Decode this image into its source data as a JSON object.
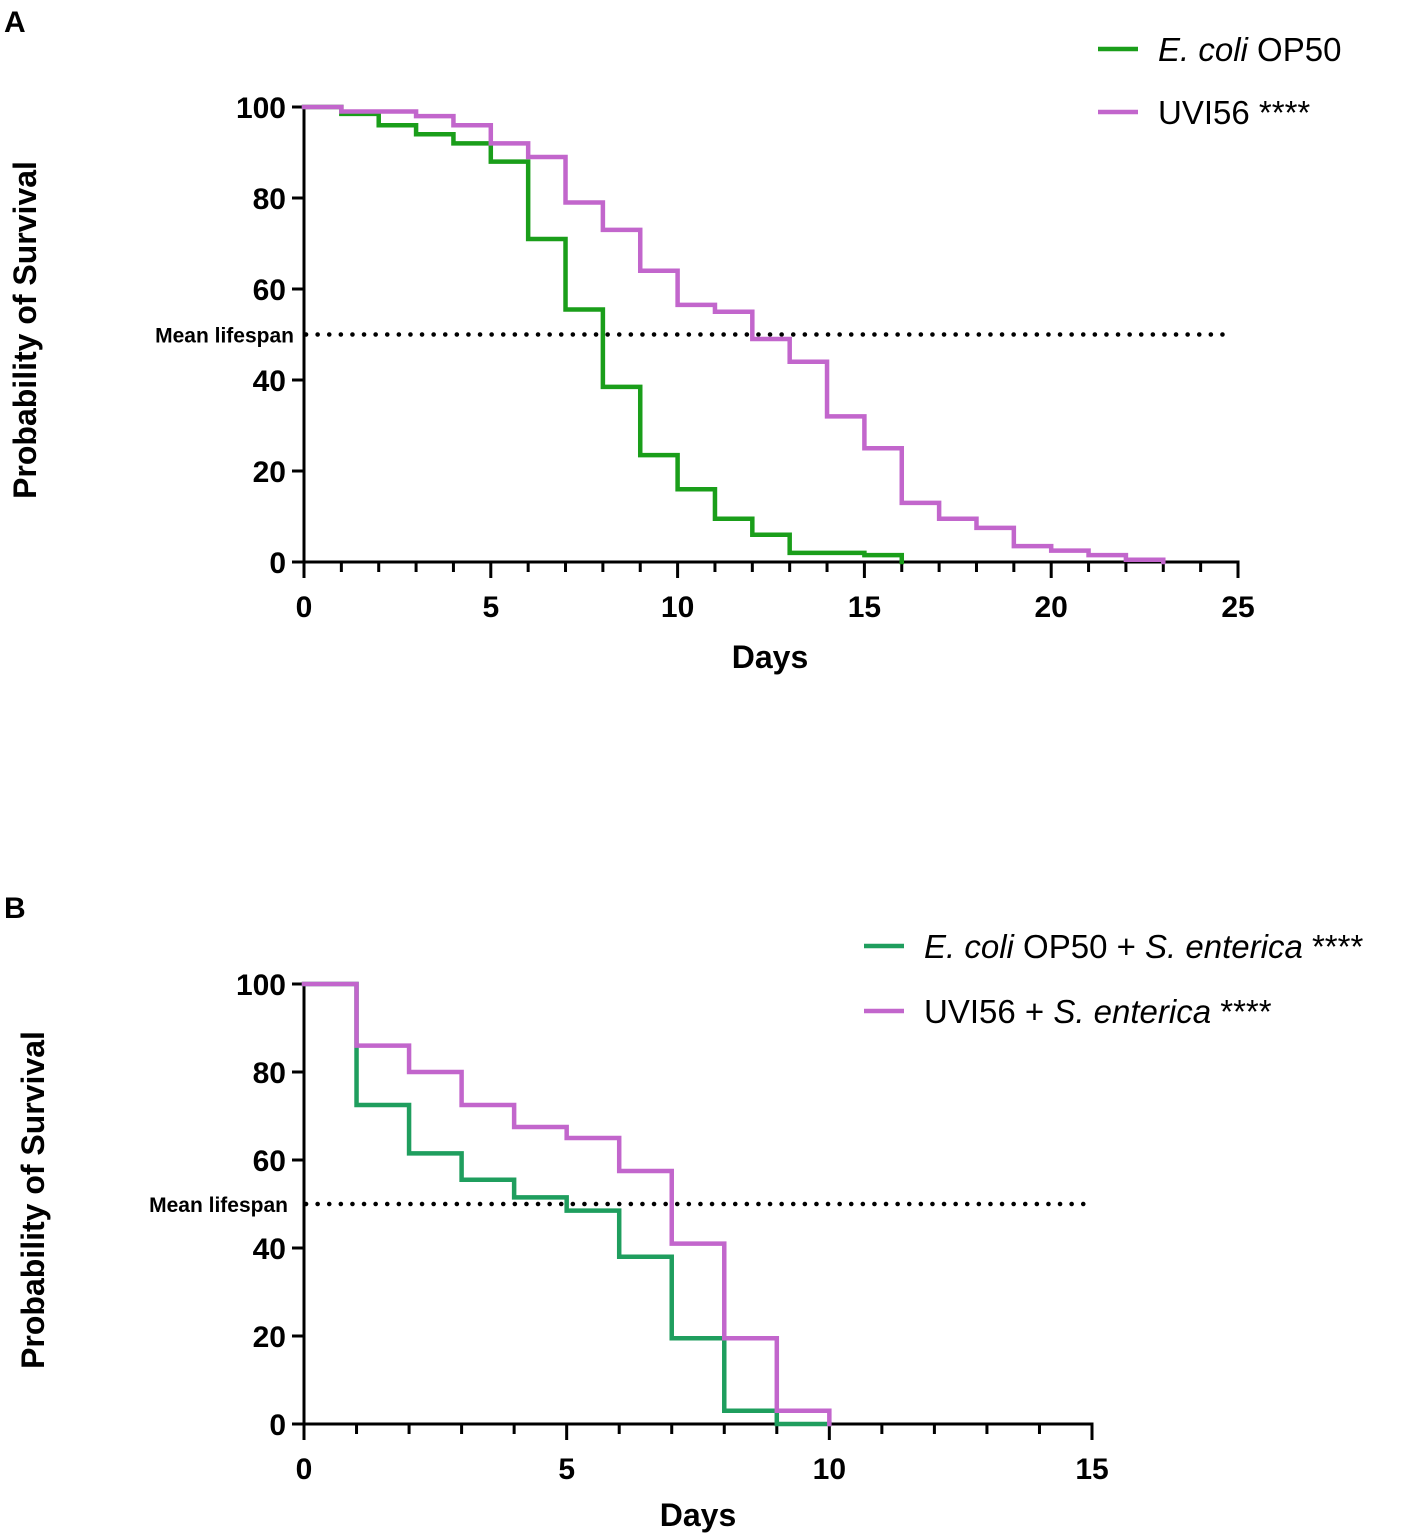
{
  "chart_data": [
    {
      "type": "line",
      "subtype": "kaplan-meier-step",
      "panel": "A",
      "xlabel": "Days",
      "ylabel": "Probability of Survival",
      "xlim": [
        0,
        25
      ],
      "ylim": [
        0,
        100
      ],
      "xticks": [
        0,
        5,
        10,
        15,
        20,
        25
      ],
      "yticks": [
        0,
        20,
        40,
        60,
        80,
        100
      ],
      "x_minor_step": 1,
      "reference_line": {
        "label": "Mean lifespan",
        "y": 50,
        "style": "dotted"
      },
      "legend_position": "top-right",
      "series": [
        {
          "name": "E. coli OP50",
          "legend": [
            {
              "text": "E. coli",
              "italic": true
            },
            {
              "text": " OP50",
              "italic": false
            }
          ],
          "color": "#1a9e1a",
          "x": [
            0,
            1,
            2,
            3,
            4,
            5,
            6,
            7,
            8,
            9,
            10,
            11,
            12,
            13,
            15,
            16
          ],
          "values": [
            100,
            98.5,
            96,
            94,
            92,
            88,
            71,
            55.5,
            38.5,
            23.5,
            16,
            9.5,
            6,
            2,
            1.5,
            0
          ]
        },
        {
          "name": "UVI56 ****",
          "legend": [
            {
              "text": "UVI56 ****",
              "italic": false
            }
          ],
          "color": "#c266cc",
          "x": [
            0,
            1,
            3,
            4,
            5,
            6,
            7,
            8,
            9,
            10,
            11,
            12,
            13,
            14,
            15,
            16,
            17,
            18,
            19,
            20,
            21,
            22,
            23
          ],
          "values": [
            100,
            99,
            98,
            96,
            92,
            89,
            79,
            73,
            64,
            56.5,
            55,
            49,
            44,
            32,
            25,
            13,
            9.5,
            7.5,
            3.5,
            2.5,
            1.5,
            0.5,
            0
          ]
        }
      ]
    },
    {
      "type": "line",
      "subtype": "kaplan-meier-step",
      "panel": "B",
      "xlabel": "Days",
      "ylabel": "Probability of Survival",
      "xlim": [
        0,
        15
      ],
      "ylim": [
        0,
        100
      ],
      "xticks": [
        0,
        5,
        10,
        15
      ],
      "yticks": [
        0,
        20,
        40,
        60,
        80,
        100
      ],
      "x_minor_step": 1,
      "reference_line": {
        "label": "Mean lifespan",
        "y": 50,
        "style": "dotted"
      },
      "legend_position": "top-right",
      "series": [
        {
          "name": "E. coli OP50 + S. enterica ****",
          "legend": [
            {
              "text": "E. coli",
              "italic": true
            },
            {
              "text": " OP50 + ",
              "italic": false
            },
            {
              "text": "S. enterica",
              "italic": true
            },
            {
              "text": " ****",
              "italic": false
            }
          ],
          "color": "#1f9e5e",
          "x": [
            0,
            1,
            2,
            3,
            4,
            5,
            6,
            7,
            8,
            9,
            10
          ],
          "values": [
            100,
            72.5,
            61.5,
            55.5,
            51.5,
            48.5,
            38,
            19.5,
            3,
            0,
            0
          ]
        },
        {
          "name": "UVI56 + S. enterica ****",
          "legend": [
            {
              "text": "UVI56 + ",
              "italic": false
            },
            {
              "text": "S. enterica",
              "italic": true
            },
            {
              "text": " ****",
              "italic": false
            }
          ],
          "color": "#c266cc",
          "x": [
            0,
            1,
            2,
            3,
            4,
            5,
            6,
            7,
            8,
            9,
            10
          ],
          "values": [
            100,
            86,
            80,
            72.5,
            67.5,
            65,
            57.5,
            41,
            19.5,
            3,
            0
          ]
        }
      ]
    }
  ]
}
